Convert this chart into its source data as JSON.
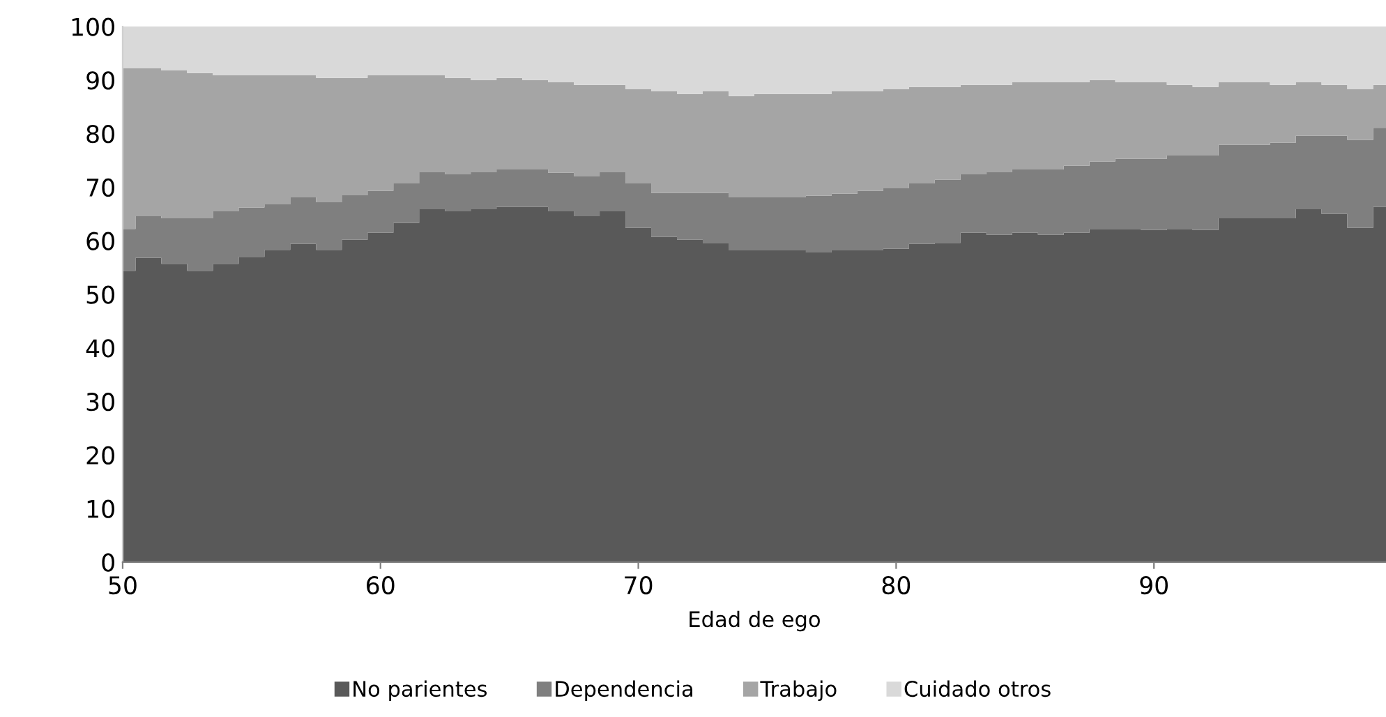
{
  "chart_data": {
    "type": "area",
    "stacked": true,
    "xlabel": "Edad de ego",
    "x": [
      50,
      51,
      52,
      53,
      54,
      55,
      56,
      57,
      58,
      59,
      60,
      61,
      62,
      63,
      64,
      65,
      66,
      67,
      68,
      69,
      70,
      71,
      72,
      73,
      74,
      75,
      76,
      77,
      78,
      79,
      80,
      81,
      82,
      83,
      84,
      85,
      86,
      87,
      88,
      89,
      90,
      91,
      92,
      93,
      94,
      95,
      96,
      97,
      98,
      99
    ],
    "series": [
      {
        "name": "No parientes",
        "color": "#595959",
        "values": [
          54.4,
          56.8,
          55.7,
          54.4,
          55.7,
          57.0,
          58.3,
          59.4,
          58.3,
          60.2,
          61.5,
          63.3,
          65.9,
          65.5,
          65.9,
          66.3,
          66.3,
          65.5,
          64.6,
          65.5,
          62.4,
          60.7,
          60.2,
          59.6,
          58.2,
          58.2,
          58.2,
          57.8,
          58.2,
          58.2,
          58.5,
          59.4,
          59.6,
          61.5,
          61.1,
          61.5,
          61.1,
          61.5,
          62.2,
          62.2,
          62.0,
          62.2,
          62.0,
          64.2,
          64.2,
          64.2,
          65.9,
          65.0,
          62.4,
          66.3
        ]
      },
      {
        "name": "Dependencia",
        "color": "#7f7f7f",
        "values": [
          7.8,
          7.8,
          8.5,
          9.8,
          9.8,
          9.2,
          8.5,
          8.7,
          8.9,
          8.3,
          7.8,
          7.4,
          6.9,
          6.9,
          6.9,
          7.0,
          7.0,
          7.2,
          7.4,
          7.3,
          8.3,
          8.2,
          8.7,
          9.3,
          9.9,
          9.9,
          9.9,
          10.6,
          10.6,
          11.1,
          11.3,
          11.3,
          11.8,
          10.9,
          11.7,
          11.8,
          12.2,
          12.5,
          12.6,
          13.1,
          13.3,
          13.7,
          13.9,
          13.7,
          13.7,
          14.1,
          13.7,
          14.6,
          16.4,
          14.8
        ]
      },
      {
        "name": "Trabajo",
        "color": "#a5a5a5",
        "values": [
          30.0,
          27.6,
          27.6,
          27.1,
          25.4,
          24.7,
          24.1,
          22.8,
          23.2,
          21.9,
          21.6,
          20.2,
          18.1,
          18.0,
          17.2,
          17.1,
          16.7,
          16.9,
          17.1,
          16.3,
          17.6,
          19.0,
          18.5,
          19.0,
          18.9,
          19.3,
          19.3,
          19.0,
          19.1,
          18.6,
          18.5,
          18.0,
          17.3,
          16.7,
          16.3,
          16.3,
          16.3,
          15.6,
          15.2,
          14.3,
          14.3,
          13.2,
          12.8,
          11.7,
          11.7,
          10.8,
          10.0,
          9.5,
          9.5,
          8.0
        ]
      },
      {
        "name": "Cuidado otros",
        "color": "#d9d9d9",
        "values": [
          7.8,
          7.8,
          8.2,
          8.7,
          9.1,
          9.1,
          9.1,
          9.1,
          9.6,
          9.6,
          9.1,
          9.1,
          9.1,
          9.6,
          10.0,
          9.6,
          10.0,
          10.4,
          10.9,
          10.9,
          11.7,
          12.1,
          12.6,
          12.1,
          13.0,
          12.6,
          12.6,
          12.6,
          12.1,
          12.1,
          11.7,
          11.3,
          11.3,
          10.9,
          10.9,
          10.4,
          10.4,
          10.4,
          10.0,
          10.4,
          10.4,
          10.9,
          11.3,
          10.4,
          10.4,
          10.9,
          10.4,
          10.9,
          11.7,
          10.9
        ]
      }
    ],
    "xlim": [
      50,
      99
    ],
    "xticks": [
      50,
      60,
      70,
      80,
      90
    ],
    "ylim": [
      0,
      100
    ],
    "yticks": [
      0,
      10,
      20,
      30,
      40,
      50,
      60,
      70,
      80,
      90,
      100
    ],
    "grid": false,
    "legend": "bottom"
  }
}
